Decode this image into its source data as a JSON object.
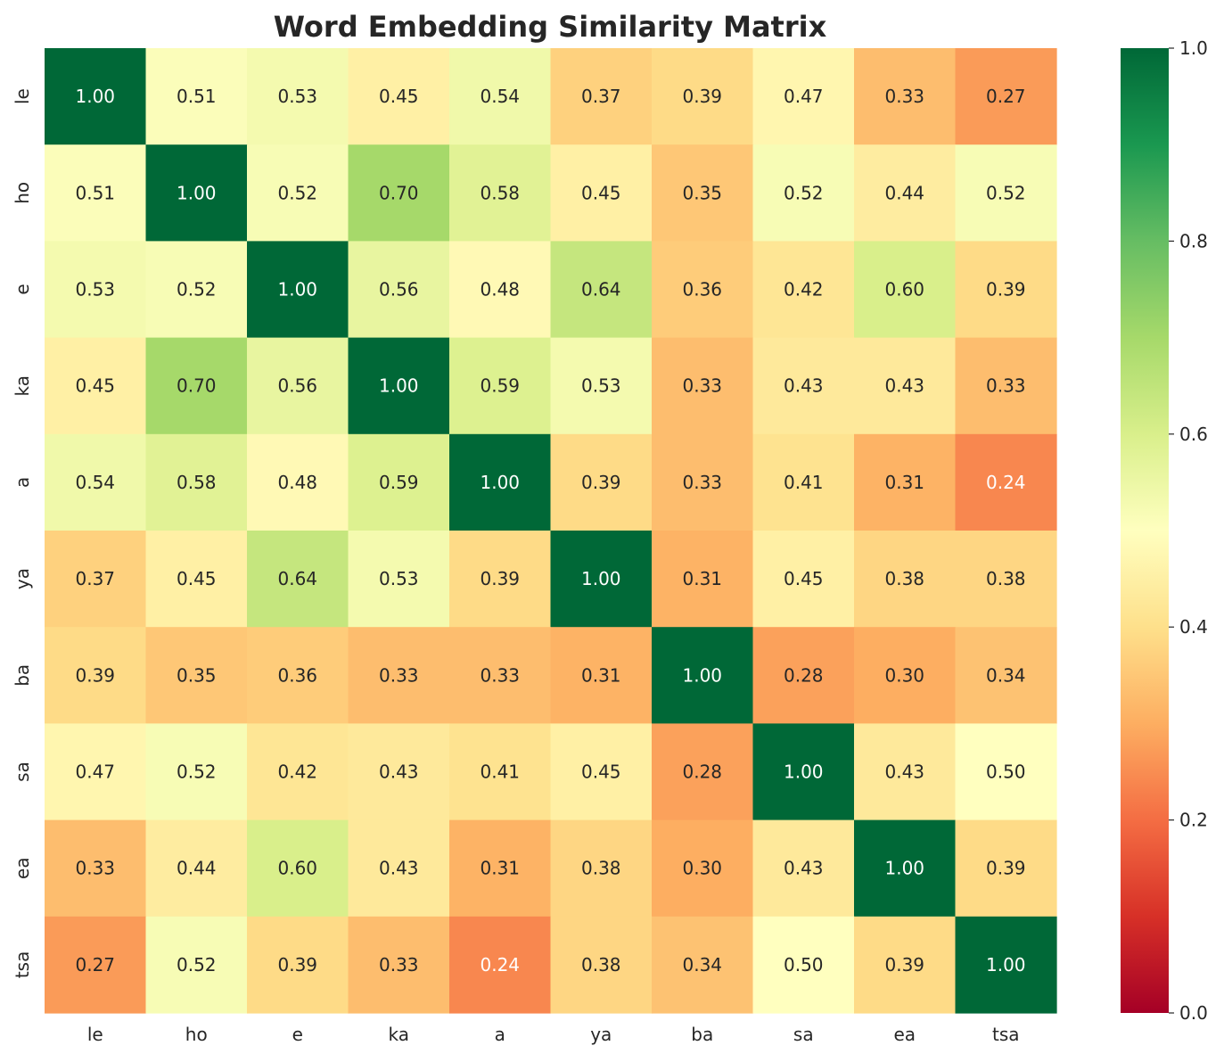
{
  "chart_data": {
    "type": "heatmap",
    "title": "Word Embedding Similarity Matrix",
    "xlabel": "",
    "ylabel": "",
    "x_labels": [
      "le",
      "ho",
      "e",
      "ka",
      "a",
      "ya",
      "ba",
      "sa",
      "ea",
      "tsa"
    ],
    "y_labels": [
      "le",
      "ho",
      "e",
      "ka",
      "a",
      "ya",
      "ba",
      "sa",
      "ea",
      "tsa"
    ],
    "values": [
      [
        1.0,
        0.51,
        0.53,
        0.45,
        0.54,
        0.37,
        0.39,
        0.47,
        0.33,
        0.27
      ],
      [
        0.51,
        1.0,
        0.52,
        0.7,
        0.58,
        0.45,
        0.35,
        0.52,
        0.44,
        0.52
      ],
      [
        0.53,
        0.52,
        1.0,
        0.56,
        0.48,
        0.64,
        0.36,
        0.42,
        0.6,
        0.39
      ],
      [
        0.45,
        0.7,
        0.56,
        1.0,
        0.59,
        0.53,
        0.33,
        0.43,
        0.43,
        0.33
      ],
      [
        0.54,
        0.58,
        0.48,
        0.59,
        1.0,
        0.39,
        0.33,
        0.41,
        0.31,
        0.24
      ],
      [
        0.37,
        0.45,
        0.64,
        0.53,
        0.39,
        1.0,
        0.31,
        0.45,
        0.38,
        0.38
      ],
      [
        0.39,
        0.35,
        0.36,
        0.33,
        0.33,
        0.31,
        1.0,
        0.28,
        0.3,
        0.34
      ],
      [
        0.47,
        0.52,
        0.42,
        0.43,
        0.41,
        0.45,
        0.28,
        1.0,
        0.43,
        0.5
      ],
      [
        0.33,
        0.44,
        0.6,
        0.43,
        0.31,
        0.38,
        0.3,
        0.43,
        1.0,
        0.39
      ],
      [
        0.27,
        0.52,
        0.39,
        0.33,
        0.24,
        0.38,
        0.34,
        0.5,
        0.39,
        1.0
      ]
    ],
    "value_format": "2dp",
    "colorscale": "RdYlGn",
    "vmin": 0.0,
    "vmax": 1.0,
    "colorbar_ticks": [
      "0.0",
      "0.2",
      "0.4",
      "0.6",
      "0.8",
      "1.0"
    ],
    "colorbar_tick_values": [
      0.0,
      0.2,
      0.4,
      0.6,
      0.8,
      1.0
    ],
    "grid": false,
    "colorbar_placement": "right"
  }
}
